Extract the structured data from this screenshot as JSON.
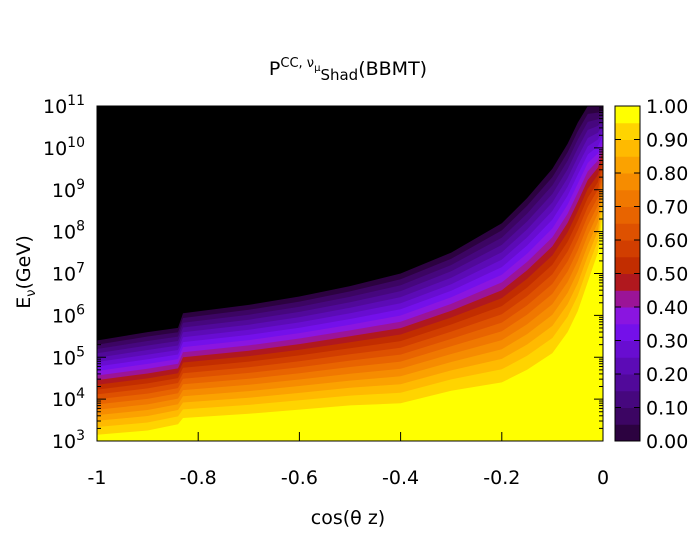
{
  "chart_data": {
    "type": "heatmap",
    "title": {
      "base": "P",
      "sup": "CC, ν",
      "sup_sub": "μ",
      "sub": "Shad",
      "tail": "(BBMT)"
    },
    "xlabel": "cos(θ z)",
    "ylabel": {
      "base": "E",
      "sub": "ν",
      "tail": "(GeV)"
    },
    "xlim": [
      -1,
      0
    ],
    "ylim_log10": [
      3,
      11
    ],
    "y_scale": "log",
    "x_ticks": [
      {
        "v": -1,
        "label": "-1"
      },
      {
        "v": -0.8,
        "label": "-0.8"
      },
      {
        "v": -0.6,
        "label": "-0.6"
      },
      {
        "v": -0.4,
        "label": "-0.4"
      },
      {
        "v": -0.2,
        "label": "-0.2"
      },
      {
        "v": 0,
        "label": "0"
      }
    ],
    "y_ticks": [
      {
        "exp": 3,
        "base": "10",
        "sup": "3"
      },
      {
        "exp": 4,
        "base": "10",
        "sup": "4"
      },
      {
        "exp": 5,
        "base": "10",
        "sup": "5"
      },
      {
        "exp": 6,
        "base": "10",
        "sup": "6"
      },
      {
        "exp": 7,
        "base": "10",
        "sup": "7"
      },
      {
        "exp": 8,
        "base": "10",
        "sup": "8"
      },
      {
        "exp": 9,
        "base": "10",
        "sup": "9"
      },
      {
        "exp": 10,
        "base": "10",
        "sup": "10"
      },
      {
        "exp": 11,
        "base": "10",
        "sup": "11"
      }
    ],
    "colorbar": {
      "range": [
        0,
        1
      ],
      "labels": [
        "0.00",
        "0.10",
        "0.20",
        "0.30",
        "0.40",
        "0.50",
        "0.60",
        "0.70",
        "0.80",
        "0.90",
        "1.00"
      ],
      "levels": 20
    },
    "contours": {
      "cos": [
        -1,
        -0.9,
        -0.84,
        -0.83,
        -0.7,
        -0.6,
        -0.5,
        -0.4,
        -0.3,
        -0.2,
        -0.15,
        -0.1,
        -0.07,
        -0.05,
        -0.03,
        -0.01,
        0
      ],
      "p_0_95_log10E": [
        3.15,
        3.25,
        3.4,
        3.55,
        3.65,
        3.75,
        3.85,
        3.9,
        4.2,
        4.4,
        4.7,
        5.1,
        5.6,
        6.1,
        6.8,
        7.5,
        8.5
      ],
      "p_0_01_log10E": [
        5.4,
        5.6,
        5.7,
        6.05,
        6.25,
        6.45,
        6.7,
        7.0,
        7.5,
        8.2,
        8.8,
        9.5,
        10.1,
        10.6,
        11.0,
        11.0,
        11.0
      ]
    },
    "colors": [
      "#000000",
      "#2c0240",
      "#3c0563",
      "#46077e",
      "#51099a",
      "#5c0bb6",
      "#680dd1",
      "#7410ea",
      "#8a15e0",
      "#9b1497",
      "#b0181e",
      "#c22d00",
      "#d13e00",
      "#de5100",
      "#e86400",
      "#f07800",
      "#f68c00",
      "#fba200",
      "#ffba00",
      "#ffd400",
      "#ffff00"
    ],
    "grid": false,
    "legend": "none"
  }
}
